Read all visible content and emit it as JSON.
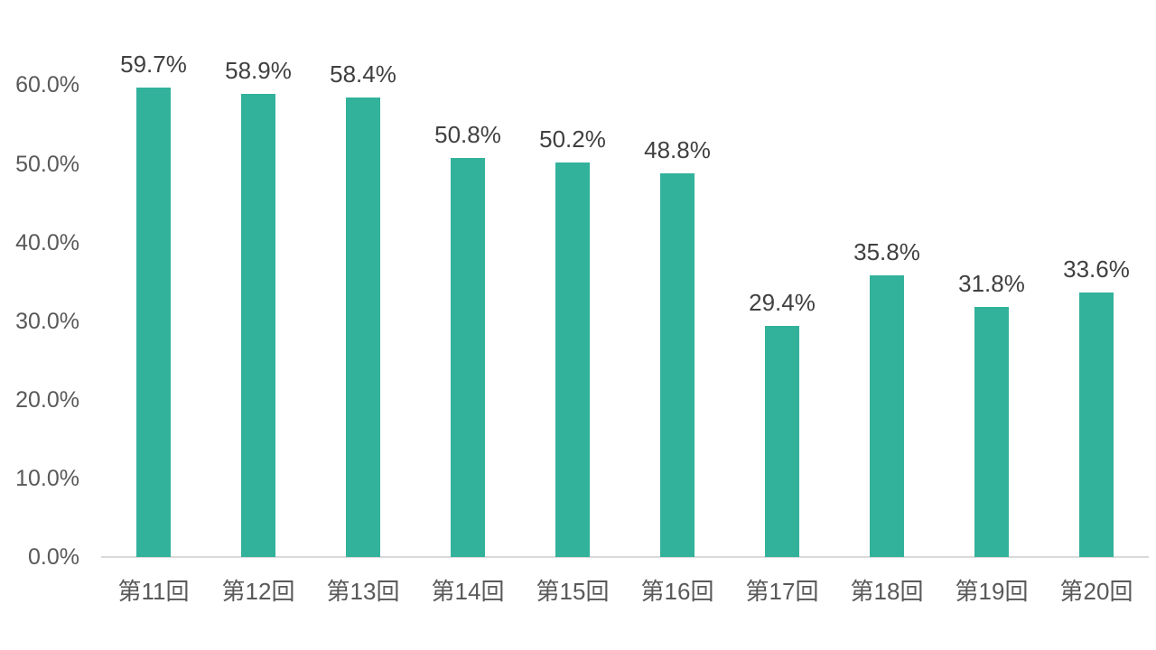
{
  "chart_data": {
    "type": "bar",
    "title": "",
    "xlabel": "",
    "ylabel": "",
    "categories": [
      "第11回",
      "第12回",
      "第13回",
      "第14回",
      "第15回",
      "第16回",
      "第17回",
      "第18回",
      "第19回",
      "第20回"
    ],
    "values": [
      59.7,
      58.9,
      58.4,
      50.8,
      50.2,
      48.8,
      29.4,
      35.8,
      31.8,
      33.6
    ],
    "value_labels": [
      "59.7%",
      "58.9%",
      "58.4%",
      "50.8%",
      "50.2%",
      "48.8%",
      "29.4%",
      "35.8%",
      "31.8%",
      "33.6%"
    ],
    "ylim": [
      0,
      60
    ],
    "ytick_values": [
      0,
      10,
      20,
      30,
      40,
      50,
      60
    ],
    "ytick_labels": [
      "0.0%",
      "10.0%",
      "20.0%",
      "30.0%",
      "40.0%",
      "50.0%",
      "60.0%"
    ],
    "grid": false,
    "legend": false,
    "bar_color": "#32B29B",
    "value_label_color": "#404040",
    "tick_label_color": "#595959",
    "axis_line_color": "#D9D9D9"
  }
}
